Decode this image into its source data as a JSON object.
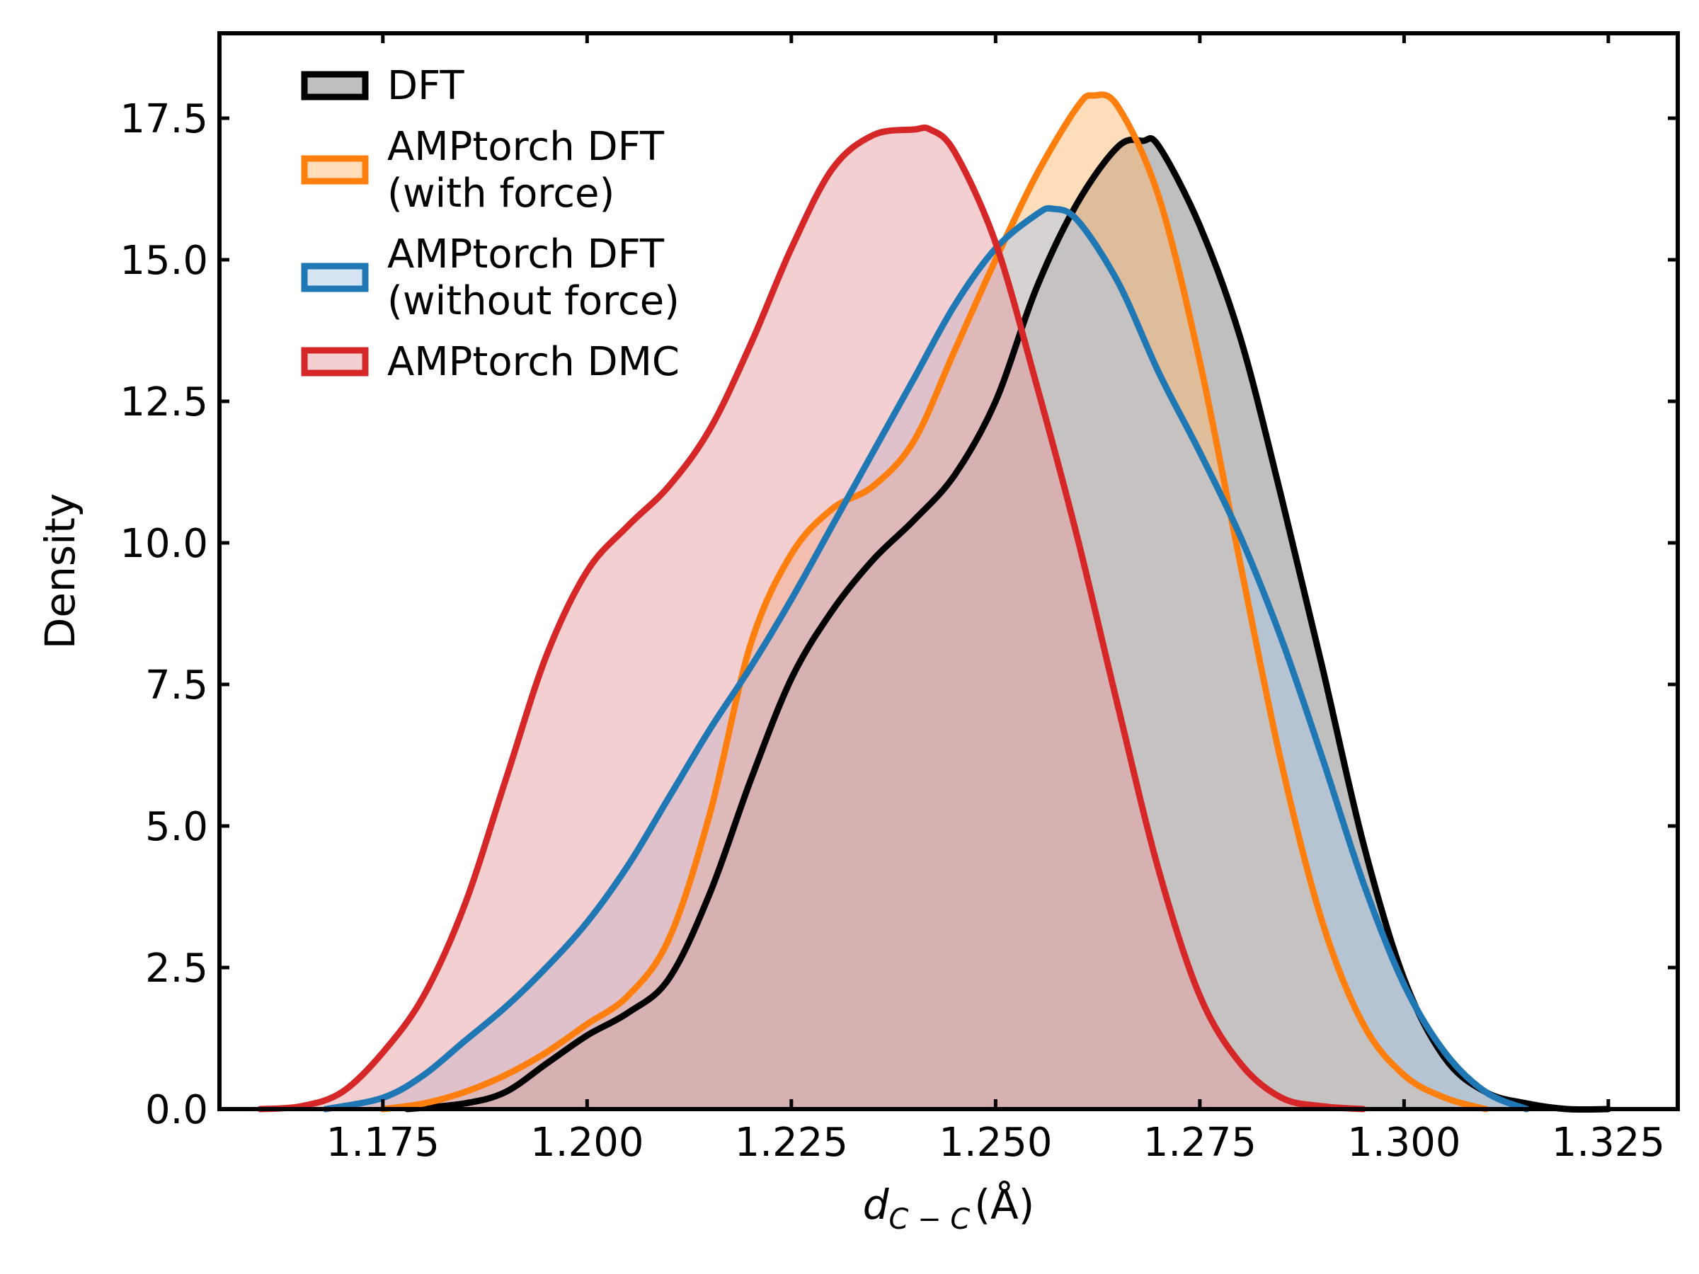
{
  "chart_data": {
    "type": "area",
    "title": "",
    "xlabel": "d_{C-C} (Å)",
    "xlabel_parts": {
      "symbol": "d",
      "subscript": "C − C",
      "unit": "(Å)"
    },
    "ylabel": "Density",
    "xlim": [
      1.155,
      1.3335
    ],
    "ylim": [
      0,
      19
    ],
    "xticks": [
      1.175,
      1.2,
      1.225,
      1.25,
      1.275,
      1.3,
      1.325
    ],
    "xtick_labels": [
      "1.175",
      "1.200",
      "1.225",
      "1.250",
      "1.275",
      "1.300",
      "1.325"
    ],
    "yticks": [
      0,
      2.5,
      5,
      7.5,
      10,
      12.5,
      15,
      17.5
    ],
    "ytick_labels": [
      "0.0",
      "2.5",
      "5.0",
      "7.5",
      "10.0",
      "12.5",
      "15.0",
      "17.5"
    ],
    "grid": false,
    "legend_position": "top-left",
    "series": [
      {
        "name": "DFT",
        "legend_lines": [
          "DFT"
        ],
        "line_color": "#000000",
        "fill_color": "#7f7f7f",
        "x": [
          1.178,
          1.185,
          1.19,
          1.195,
          1.2,
          1.205,
          1.21,
          1.215,
          1.22,
          1.225,
          1.23,
          1.235,
          1.24,
          1.245,
          1.25,
          1.255,
          1.26,
          1.265,
          1.268,
          1.27,
          1.275,
          1.28,
          1.285,
          1.29,
          1.295,
          1.3,
          1.305,
          1.31,
          1.315,
          1.32,
          1.325
        ],
        "y": [
          0.0,
          0.1,
          0.3,
          0.8,
          1.3,
          1.7,
          2.3,
          3.8,
          5.8,
          7.6,
          8.8,
          9.7,
          10.4,
          11.2,
          12.5,
          14.5,
          16.0,
          17.0,
          17.1,
          17.0,
          15.6,
          13.6,
          10.8,
          7.8,
          4.7,
          2.3,
          0.9,
          0.3,
          0.1,
          0.0,
          0.0
        ]
      },
      {
        "name": "AMPtorch DFT (with force)",
        "legend_lines": [
          "AMPtorch DFT",
          "(with force)"
        ],
        "line_color": "#ff7f0e",
        "fill_color": "#ffbb78",
        "x": [
          1.175,
          1.18,
          1.185,
          1.19,
          1.195,
          1.2,
          1.205,
          1.21,
          1.215,
          1.22,
          1.225,
          1.23,
          1.235,
          1.24,
          1.245,
          1.25,
          1.255,
          1.26,
          1.262,
          1.265,
          1.27,
          1.275,
          1.28,
          1.285,
          1.29,
          1.295,
          1.3,
          1.305,
          1.31
        ],
        "y": [
          0.0,
          0.1,
          0.3,
          0.6,
          1.0,
          1.5,
          2.0,
          3.0,
          5.2,
          8.2,
          9.8,
          10.6,
          11.0,
          11.8,
          13.4,
          15.0,
          16.5,
          17.7,
          17.9,
          17.7,
          16.1,
          13.2,
          9.6,
          6.1,
          3.3,
          1.5,
          0.6,
          0.2,
          0.0
        ]
      },
      {
        "name": "AMPtorch DFT (without force)",
        "legend_lines": [
          "AMPtorch DFT",
          "(without force)"
        ],
        "line_color": "#1f77b4",
        "fill_color": "#aec7e8",
        "x": [
          1.168,
          1.175,
          1.18,
          1.185,
          1.19,
          1.195,
          1.2,
          1.205,
          1.21,
          1.215,
          1.22,
          1.225,
          1.23,
          1.235,
          1.24,
          1.245,
          1.25,
          1.255,
          1.257,
          1.26,
          1.265,
          1.27,
          1.275,
          1.28,
          1.285,
          1.29,
          1.295,
          1.3,
          1.305,
          1.31,
          1.315
        ],
        "y": [
          0.0,
          0.2,
          0.6,
          1.2,
          1.8,
          2.5,
          3.3,
          4.3,
          5.5,
          6.7,
          7.8,
          9.0,
          10.3,
          11.6,
          12.9,
          14.2,
          15.2,
          15.8,
          15.9,
          15.7,
          14.6,
          13.0,
          11.6,
          10.1,
          8.3,
          6.2,
          4.0,
          2.2,
          1.0,
          0.3,
          0.0
        ]
      },
      {
        "name": "AMPtorch DMC",
        "legend_lines": [
          "AMPtorch DMC"
        ],
        "line_color": "#d62728",
        "fill_color": "#e8a0a4",
        "x": [
          1.16,
          1.165,
          1.17,
          1.175,
          1.18,
          1.185,
          1.19,
          1.195,
          1.2,
          1.205,
          1.21,
          1.215,
          1.22,
          1.225,
          1.23,
          1.235,
          1.24,
          1.242,
          1.245,
          1.25,
          1.255,
          1.26,
          1.265,
          1.27,
          1.275,
          1.28,
          1.285,
          1.29,
          1.295
        ],
        "y": [
          0.0,
          0.05,
          0.3,
          1.0,
          2.0,
          3.6,
          5.8,
          8.0,
          9.5,
          10.3,
          11.0,
          12.0,
          13.5,
          15.2,
          16.6,
          17.2,
          17.3,
          17.3,
          16.9,
          15.3,
          12.8,
          10.1,
          7.1,
          4.2,
          2.0,
          0.8,
          0.2,
          0.05,
          0.0
        ]
      }
    ]
  }
}
